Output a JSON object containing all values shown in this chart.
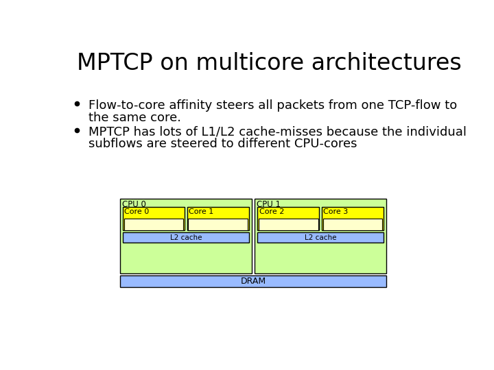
{
  "title": "MPTCP on multicore architectures",
  "bullet1_line1": "Flow-to-core affinity steers all packets from one TCP-flow to",
  "bullet1_line2": "the same core.",
  "bullet2_line1": "MPTCP has lots of L1/L2 cache-misses because the individual",
  "bullet2_line2": "subflows are steered to different CPU-cores",
  "bg_color": "#ffffff",
  "title_color": "#000000",
  "text_color": "#000000",
  "cpu_bg_color": "#ccff99",
  "core_bg_color": "#ffff00",
  "l1_bg_color": "#ffffcc",
  "l2_bg_color": "#99bbff",
  "dram_bg_color": "#99bbff",
  "border_color": "#000000",
  "title_fontsize": 24,
  "body_fontsize": 13,
  "diagram_fontsize": 9
}
